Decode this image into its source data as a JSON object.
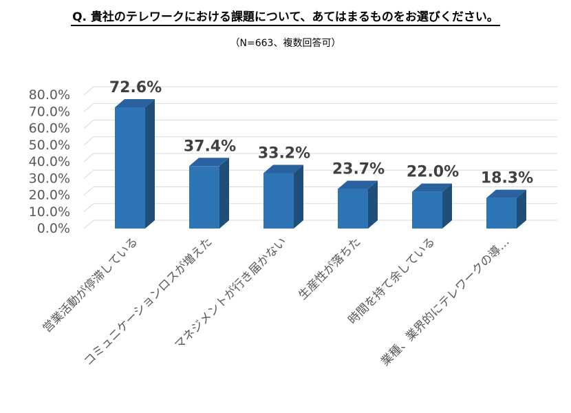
{
  "page": {
    "title": "Q. 貴社のテレワークにおける課題について、あてはまるものをお選びください。",
    "note": "（N=663、複数回答可）"
  },
  "colors": {
    "bar_front": "#2e75b6",
    "bar_side": "#1f4e79",
    "bar_top": "#2a62a0",
    "grid": "#d9d9d9",
    "tick_label": "#595959",
    "data_label": "#404040"
  },
  "chart_data": {
    "type": "bar",
    "title": "",
    "xlabel": "",
    "ylabel": "",
    "ylim": [
      0,
      80
    ],
    "yticks": [
      0,
      10,
      20,
      30,
      40,
      50,
      60,
      70,
      80
    ],
    "ytick_labels": [
      "0.0%",
      "10.0%",
      "20.0%",
      "30.0%",
      "40.0%",
      "50.0%",
      "60.0%",
      "70.0%",
      "80.0%"
    ],
    "categories": [
      "営業活動が停滞している",
      "コミュニケーションロスが増えた",
      "マネジメントが行き届かない",
      "生産性が落ちた",
      "時間を持て余している",
      "業種、業界的にテレワークの導…"
    ],
    "values": [
      72.6,
      37.4,
      33.2,
      23.7,
      22.0,
      18.3
    ],
    "value_labels": [
      "72.6%",
      "37.4%",
      "33.2%",
      "23.7%",
      "22.0%",
      "18.3%"
    ],
    "grid": true,
    "legend": "none"
  }
}
